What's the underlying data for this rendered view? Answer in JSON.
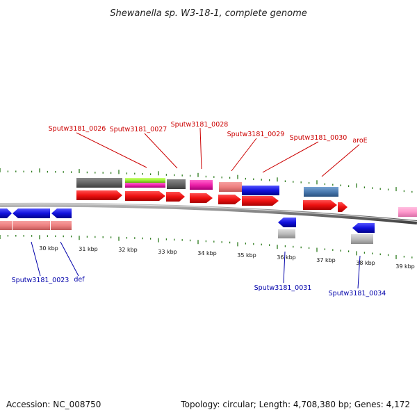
{
  "title": "Shewanella sp. W3-18-1, complete genome",
  "footer": {
    "accession": "Accession: NC_008750",
    "topology": "Topology: circular; Length: 4,708,380 bp; Genes: 4,172"
  },
  "scale_labels": [
    "30 kbp",
    "31 kbp",
    "32 kbp",
    "33 kbp",
    "34 kbp",
    "35 kbp",
    "36 kbp",
    "37 kbp",
    "38 kbp",
    "39 kbp"
  ],
  "gene_labels_top": [
    "Sputw3181_0026",
    "Sputw3181_0027",
    "Sputw3181_0028",
    "Sputw3181_0029",
    "Sputw3181_0030",
    "aroE"
  ],
  "gene_labels_bottom": [
    "Sputw3181_0023",
    "def",
    "Sputw3181_0031",
    "Sputw3181_0034"
  ],
  "colors": {
    "forward_strand_gene": "#ee1111",
    "reverse_strand_gene": "#1111dd",
    "label_top": "#cc0000",
    "label_bottom": "#0000aa",
    "tick": "#2a7a1a",
    "backbone": "#888888",
    "feature_gray": "#6a6a6a",
    "feature_salmon": "#ee8080",
    "feature_magenta": "#ee22aa",
    "feature_lime": "#99ee33",
    "feature_steelblue": "#4a7ab0",
    "feature_lightgray": "#bbbbbb",
    "feature_pink": "#ff99cc"
  }
}
